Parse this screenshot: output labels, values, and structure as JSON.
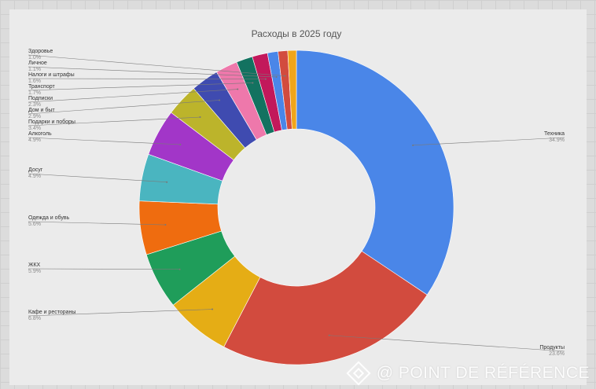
{
  "chart_data": {
    "type": "pie",
    "title": "Расходы в 2025 году",
    "donut": true,
    "slices": [
      {
        "label": "Техника",
        "pct": "34.9%",
        "value": 34.9,
        "color": "#4a86e8"
      },
      {
        "label": "Продукты",
        "pct": "23.6%",
        "value": 23.6,
        "color": "#d24b3e"
      },
      {
        "label": "Кафе и рестораны",
        "pct": "6.8%",
        "value": 6.8,
        "color": "#e5ad15"
      },
      {
        "label": "ЖКХ",
        "pct": "5.9%",
        "value": 5.9,
        "color": "#1f9d5a"
      },
      {
        "label": "Одежда и обувь",
        "pct": "5.6%",
        "value": 5.6,
        "color": "#ef6c0f"
      },
      {
        "label": "Досуг",
        "pct": "4.9%",
        "value": 4.9,
        "color": "#4ab5c0"
      },
      {
        "label": "Алкоголь",
        "pct": "4.9%",
        "value": 4.9,
        "color": "#a236c8"
      },
      {
        "label": "Подарки и поборы",
        "pct": "3.4%",
        "value": 3.4,
        "color": "#bcb42b"
      },
      {
        "label": "Дом и быт",
        "pct": "2.9%",
        "value": 2.9,
        "color": "#3f4bb0"
      },
      {
        "label": "Подписки",
        "pct": "2.3%",
        "value": 2.3,
        "color": "#ee78ab"
      },
      {
        "label": "Транспорт",
        "pct": "1.7%",
        "value": 1.7,
        "color": "#137260"
      },
      {
        "label": "Налоги и штрафы",
        "pct": "1.6%",
        "value": 1.6,
        "color": "#c2185b"
      },
      {
        "label": "Личное",
        "pct": "1.1%",
        "value": 1.1,
        "color": "#4a86e8"
      },
      {
        "label": "Здоровье",
        "pct": "1.0%",
        "value": 1.0,
        "color": "#d24b3e"
      },
      {
        "label": "",
        "pct": "",
        "value": 0.9,
        "color": "#f0a51a"
      }
    ]
  },
  "watermark": "@ POINT DE RÉFÉRENCE"
}
